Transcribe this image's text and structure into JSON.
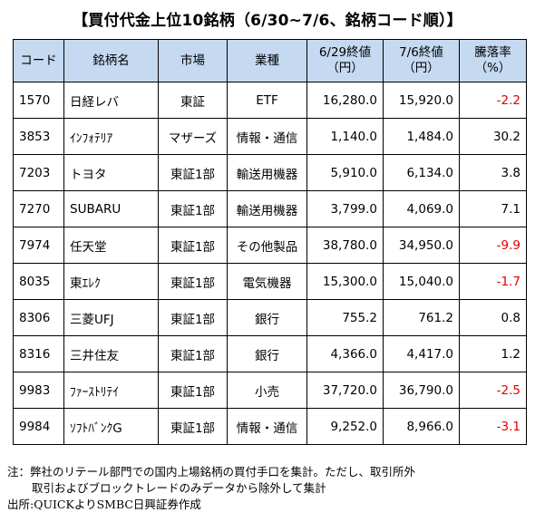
{
  "title": "【買付代金上位10銘柄（6/30~7/6、銘柄コード順）】",
  "headers": {
    "code": "コード",
    "name": "銘柄名",
    "market": "市場",
    "sector": "業種",
    "price1_line1": "6/29終値",
    "price1_line2": "（円）",
    "price2_line1": "7/6終値",
    "price2_line2": "（円）",
    "change_line1": "騰落率",
    "change_line2": "（%）"
  },
  "rows": [
    {
      "code": "1570",
      "name": "日経レバ",
      "market": "東証",
      "sector": "ETF",
      "price1": "16,280.0",
      "price2": "15,920.0",
      "change": "-2.2"
    },
    {
      "code": "3853",
      "name": "ｲﾝﾌｫﾃﾘｱ",
      "market": "マザーズ",
      "sector": "情報・通信",
      "price1": "1,140.0",
      "price2": "1,484.0",
      "change": "30.2"
    },
    {
      "code": "7203",
      "name": "トヨタ",
      "market": "東証1部",
      "sector": "輸送用機器",
      "price1": "5,910.0",
      "price2": "6,134.0",
      "change": "3.8"
    },
    {
      "code": "7270",
      "name": "SUBARU",
      "market": "東証1部",
      "sector": "輸送用機器",
      "price1": "3,799.0",
      "price2": "4,069.0",
      "change": "7.1"
    },
    {
      "code": "7974",
      "name": "任天堂",
      "market": "東証1部",
      "sector": "その他製品",
      "price1": "38,780.0",
      "price2": "34,950.0",
      "change": "-9.9"
    },
    {
      "code": "8035",
      "name": "東ｴﾚｸ",
      "market": "東証1部",
      "sector": "電気機器",
      "price1": "15,300.0",
      "price2": "15,040.0",
      "change": "-1.7"
    },
    {
      "code": "8306",
      "name": "三菱UFJ",
      "market": "東証1部",
      "sector": "銀行",
      "price1": "755.2",
      "price2": "761.2",
      "change": "0.8"
    },
    {
      "code": "8316",
      "name": "三井住友",
      "market": "東証1部",
      "sector": "銀行",
      "price1": "4,366.0",
      "price2": "4,417.0",
      "change": "1.2"
    },
    {
      "code": "9983",
      "name": "ﾌｧｰｽﾄﾘﾃｲ",
      "market": "東証1部",
      "sector": "小売",
      "price1": "37,720.0",
      "price2": "36,790.0",
      "change": "-2.5"
    },
    {
      "code": "9984",
      "name": "ｿﾌﾄﾊﾞﾝｸG",
      "market": "東証1部",
      "sector": "情報・通信",
      "price1": "9,252.0",
      "price2": "8,966.0",
      "change": "-3.1"
    }
  ],
  "colors": {
    "header_bg": "#c5d9f1",
    "negative": "#e00000"
  },
  "notes": {
    "line1": "注：弊社のリテール部門での国内上場銘柄の買付手口を集計。ただし、取引所外",
    "line2": "取引およびブロックトレードのみデータから除外して集計",
    "line3": "出所:QUICKよりSMBC日興証券作成"
  }
}
